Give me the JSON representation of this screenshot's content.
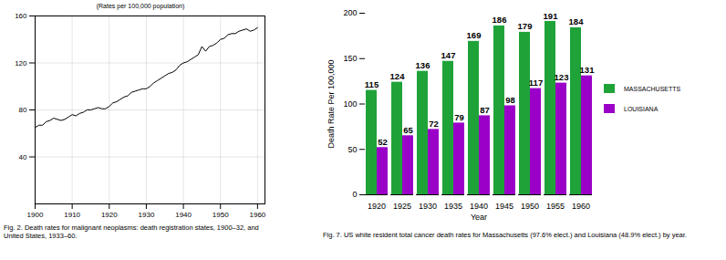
{
  "chart_data": [
    {
      "type": "line",
      "subtitle": "(Rates per 100,000 population)",
      "caption": "Fig. 2. Death rates for malignant neoplasms: death registration states, 1900–32, and United States, 1933–60.",
      "x": [
        1900,
        1901,
        1902,
        1903,
        1904,
        1905,
        1906,
        1907,
        1908,
        1909,
        1910,
        1911,
        1912,
        1913,
        1914,
        1915,
        1916,
        1917,
        1918,
        1919,
        1920,
        1921,
        1922,
        1923,
        1924,
        1925,
        1926,
        1927,
        1928,
        1929,
        1930,
        1931,
        1932,
        1933,
        1934,
        1935,
        1936,
        1937,
        1938,
        1939,
        1940,
        1941,
        1942,
        1943,
        1944,
        1945,
        1946,
        1947,
        1948,
        1949,
        1950,
        1951,
        1952,
        1953,
        1954,
        1955,
        1956,
        1957,
        1958,
        1959,
        1960
      ],
      "values": [
        65,
        67,
        67,
        70,
        71,
        73,
        72,
        71,
        72,
        74,
        76,
        75,
        77,
        78,
        80,
        80,
        81,
        82,
        81,
        81,
        83,
        86,
        87,
        89,
        91,
        92,
        95,
        96,
        97,
        98,
        98,
        100,
        103,
        105,
        107,
        109,
        111,
        112,
        114,
        118,
        120,
        121,
        123,
        125,
        127,
        134,
        130,
        134,
        135,
        137,
        140,
        141,
        144,
        145,
        145,
        147,
        148,
        149,
        147,
        148,
        150
      ],
      "color": "#000000",
      "xlim": [
        1900,
        1962
      ],
      "xticks": [
        1900,
        1910,
        1920,
        1930,
        1940,
        1950,
        1960
      ],
      "ylim": [
        0,
        160
      ],
      "yticks": [
        40,
        80,
        120,
        160
      ],
      "grid": true
    },
    {
      "type": "bar",
      "caption": "Fig. 7. US white resident total cancer death rates for Massachusetts (97.6% elect.) and Louisiana (48.9% elect.) by year.",
      "x_label": "Year",
      "y_label": "Death Rate Per 100,000",
      "categories": [
        "1920",
        "1925",
        "1930",
        "1935",
        "1940",
        "1945",
        "1950",
        "1955",
        "1960"
      ],
      "series": [
        {
          "name": "MASSACHUSETTS",
          "color": "#1fa339",
          "values": [
            115,
            124,
            136,
            147,
            169,
            186,
            179,
            191,
            184
          ]
        },
        {
          "name": "LOUISIANA",
          "color": "#9a00c8",
          "values": [
            52,
            65,
            72,
            79,
            87,
            98,
            117,
            123,
            131
          ]
        }
      ],
      "ylim": [
        0,
        200
      ],
      "yticks": [
        0,
        50,
        100,
        150,
        200
      ],
      "data_labels": true,
      "legend": "right"
    }
  ]
}
